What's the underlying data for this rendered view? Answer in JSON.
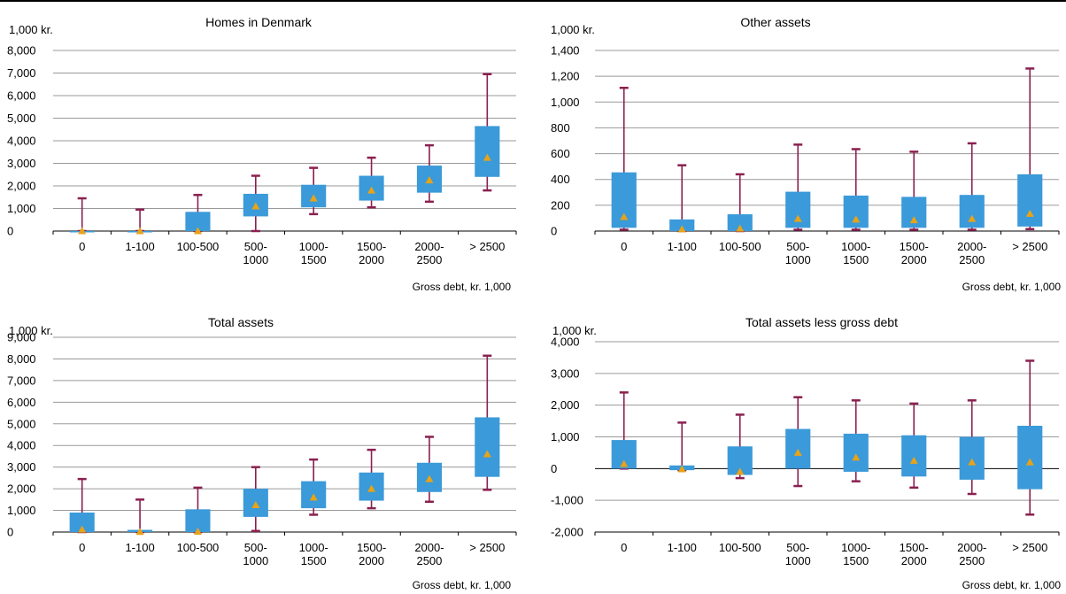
{
  "colors": {
    "box": "#3b9ad9",
    "whisker": "#8a2050",
    "mean_marker": "#e8a317",
    "grid": "#9a9a9a",
    "axis": "#000000"
  },
  "chart_data": [
    {
      "type": "boxplot",
      "title": "Homes in Denmark",
      "ylabel": "1,000 kr.",
      "xlabel": "Gross debt, kr. 1,000",
      "ylim": [
        0,
        8000
      ],
      "ytick_step": 1000,
      "yticks": [
        "0",
        "1,000",
        "2,000",
        "3,000",
        "4,000",
        "5,000",
        "6,000",
        "7,000",
        "8,000"
      ],
      "grid": true,
      "categories": [
        [
          "0"
        ],
        [
          "1-100"
        ],
        [
          "100-500"
        ],
        [
          "500-",
          "1000"
        ],
        [
          "1000-",
          "1500"
        ],
        [
          "1500-",
          "2000"
        ],
        [
          "2000-",
          "2500"
        ],
        [
          "> 2500"
        ]
      ],
      "whisker_low": [
        0,
        0,
        0,
        0,
        750,
        1050,
        1300,
        1800
      ],
      "q1": [
        0,
        0,
        0,
        650,
        1050,
        1350,
        1700,
        2400
      ],
      "q3": [
        0,
        0,
        850,
        1650,
        2050,
        2450,
        2900,
        4650
      ],
      "whisker_high": [
        1450,
        950,
        1600,
        2450,
        2800,
        3250,
        3800,
        6950
      ],
      "mean": [
        0,
        0,
        0,
        1100,
        1450,
        1800,
        2250,
        3250
      ]
    },
    {
      "type": "boxplot",
      "title": "Other assets",
      "ylabel": "1,000 kr.",
      "xlabel": "Gross debt, kr. 1,000",
      "ylim": [
        0,
        1400
      ],
      "ytick_step": 200,
      "yticks": [
        "0",
        "200",
        "400",
        "600",
        "800",
        "1,000",
        "1,200",
        "1,400"
      ],
      "grid": true,
      "categories": [
        [
          "0"
        ],
        [
          "1-100"
        ],
        [
          "100-500"
        ],
        [
          "500-",
          "1000"
        ],
        [
          "1000-",
          "1500"
        ],
        [
          "1500-",
          "2000"
        ],
        [
          "2000-",
          "2500"
        ],
        [
          "> 2500"
        ]
      ],
      "whisker_low": [
        10,
        0,
        0,
        10,
        10,
        10,
        10,
        15
      ],
      "q1": [
        25,
        0,
        0,
        25,
        25,
        25,
        25,
        35
      ],
      "q3": [
        455,
        90,
        130,
        305,
        275,
        265,
        280,
        440
      ],
      "whisker_high": [
        1110,
        510,
        440,
        670,
        635,
        615,
        680,
        1260
      ],
      "mean": [
        110,
        15,
        20,
        95,
        90,
        85,
        95,
        135
      ]
    },
    {
      "type": "boxplot",
      "title": "Total assets",
      "ylabel": "1,000 kr.",
      "xlabel": "Gross debt, kr. 1,000",
      "ylim": [
        0,
        9000
      ],
      "ytick_step": 1000,
      "yticks": [
        "0",
        "1,000",
        "2,000",
        "3,000",
        "4,000",
        "5,000",
        "6,000",
        "7,000",
        "8,000",
        "9,000"
      ],
      "grid": true,
      "categories": [
        [
          "0"
        ],
        [
          "1-100"
        ],
        [
          "100-500"
        ],
        [
          "500-",
          "1000"
        ],
        [
          "1000-",
          "1500"
        ],
        [
          "1500-",
          "2000"
        ],
        [
          "2000-",
          "2500"
        ],
        [
          "> 2500"
        ]
      ],
      "whisker_low": [
        0,
        0,
        0,
        50,
        800,
        1100,
        1400,
        1950
      ],
      "q1": [
        0,
        0,
        0,
        700,
        1100,
        1450,
        1850,
        2550
      ],
      "q3": [
        900,
        100,
        1050,
        2000,
        2350,
        2750,
        3200,
        5300
      ],
      "whisker_high": [
        2450,
        1500,
        2050,
        3000,
        3350,
        3800,
        4400,
        8150
      ],
      "mean": [
        120,
        10,
        20,
        1250,
        1600,
        2000,
        2450,
        3600
      ]
    },
    {
      "type": "boxplot",
      "title": "Total assets less gross debt",
      "ylabel": "1,000 kr.",
      "xlabel": "Gross debt, kr. 1,000",
      "ylim": [
        -2000,
        4000
      ],
      "ytick_step": 1000,
      "yticks": [
        "-2,000",
        "-1,000",
        "0",
        "1,000",
        "2,000",
        "3,000",
        "4,000"
      ],
      "grid": true,
      "categories": [
        [
          "0"
        ],
        [
          "1-100"
        ],
        [
          "100-500"
        ],
        [
          "500-",
          "1000"
        ],
        [
          "1000-",
          "1500"
        ],
        [
          "1500-",
          "2000"
        ],
        [
          "2000-",
          "2500"
        ],
        [
          "> 2500"
        ]
      ],
      "whisker_low": [
        0,
        -50,
        -300,
        -550,
        -400,
        -600,
        -800,
        -1450
      ],
      "q1": [
        0,
        -50,
        -200,
        0,
        -100,
        -250,
        -350,
        -650
      ],
      "q3": [
        900,
        100,
        700,
        1250,
        1100,
        1050,
        1000,
        1350
      ],
      "whisker_high": [
        2400,
        1450,
        1700,
        2250,
        2150,
        2050,
        2150,
        3400
      ],
      "mean": [
        150,
        -20,
        -100,
        500,
        350,
        250,
        200,
        200
      ]
    }
  ]
}
